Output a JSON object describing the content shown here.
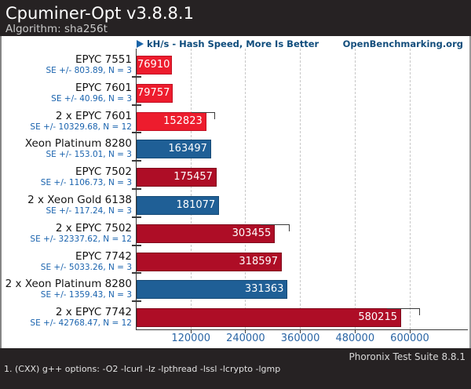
{
  "header": {
    "title": "Cpuminer-Opt v3.8.8.1",
    "subtitle": "Algorithm: sha256t"
  },
  "chart_heading": {
    "left": "kH/s - Hash Speed, More Is Better",
    "right": "OpenBenchmarking.org"
  },
  "chart_data": {
    "type": "bar",
    "orientation": "horizontal",
    "title": "Cpuminer-Opt v3.8.8.1",
    "subtitle": "Algorithm: sha256t",
    "value_axis_label": "kH/s - Hash Speed, More Is Better",
    "higher_is_better": true,
    "xticks": [
      120000,
      240000,
      360000,
      480000,
      600000
    ],
    "xlim": [
      0,
      730000
    ],
    "grid": "dashed-vertical",
    "rows": [
      {
        "category": "EPYC 7551",
        "value": 76910,
        "se": 803.89,
        "n": 3,
        "se_label": "SE +/- 803.89, N = 3",
        "color": "#ed1c2d",
        "border": "#c11023"
      },
      {
        "category": "EPYC 7601",
        "value": 79757,
        "se": 40.96,
        "n": 3,
        "se_label": "SE +/- 40.96, N = 3",
        "color": "#ed1c2d",
        "border": "#c11023"
      },
      {
        "category": "2 x EPYC 7601",
        "value": 152823,
        "se": 10329.68,
        "n": 12,
        "se_label": "SE +/- 10329.68, N = 12",
        "color": "#ed1c2d",
        "border": "#c11023"
      },
      {
        "category": "Xeon Platinum 8280",
        "value": 163497,
        "se": 153.01,
        "n": 3,
        "se_label": "SE +/- 153.01, N = 3",
        "color": "#1f5f96",
        "border": "#164a75"
      },
      {
        "category": "EPYC 7502",
        "value": 175457,
        "se": 1106.73,
        "n": 3,
        "se_label": "SE +/- 1106.73, N = 3",
        "color": "#ae0d26",
        "border": "#7e0a1c"
      },
      {
        "category": "2 x Xeon Gold 6138",
        "value": 181077,
        "se": 117.24,
        "n": 3,
        "se_label": "SE +/- 117.24, N = 3",
        "color": "#1f5f96",
        "border": "#164a75"
      },
      {
        "category": "2 x EPYC 7502",
        "value": 303455,
        "se": 32337.62,
        "n": 12,
        "se_label": "SE +/- 32337.62, N = 12",
        "color": "#ae0d26",
        "border": "#7e0a1c"
      },
      {
        "category": "EPYC 7742",
        "value": 318597,
        "se": 5033.26,
        "n": 3,
        "se_label": "SE +/- 5033.26, N = 3",
        "color": "#ae0d26",
        "border": "#7e0a1c"
      },
      {
        "category": "2 x Xeon Platinum 8280",
        "value": 331363,
        "se": 1359.43,
        "n": 3,
        "se_label": "SE +/- 1359.43, N = 3",
        "color": "#1f5f96",
        "border": "#164a75"
      },
      {
        "category": "2 x EPYC 7742",
        "value": 580215,
        "se": 42768.47,
        "n": 12,
        "se_label": "SE +/- 42768.47, N = 12",
        "color": "#ae0d26",
        "border": "#7e0a1c"
      }
    ]
  },
  "footer": {
    "right": "Phoronix Test Suite 8.8.1",
    "note": "1. (CXX) g++ options: -O2 -lcurl -lz -lpthread -lssl -lcrypto -lgmp"
  },
  "colors": {
    "header_bg": "#262223",
    "bright_red": "#ed1c2d",
    "dark_red": "#ae0d26",
    "blue": "#1f5f96",
    "heading_blue": "#0e4c7c",
    "tick_label_blue": "#2a65a5",
    "se_label_blue": "#1a63ae"
  }
}
